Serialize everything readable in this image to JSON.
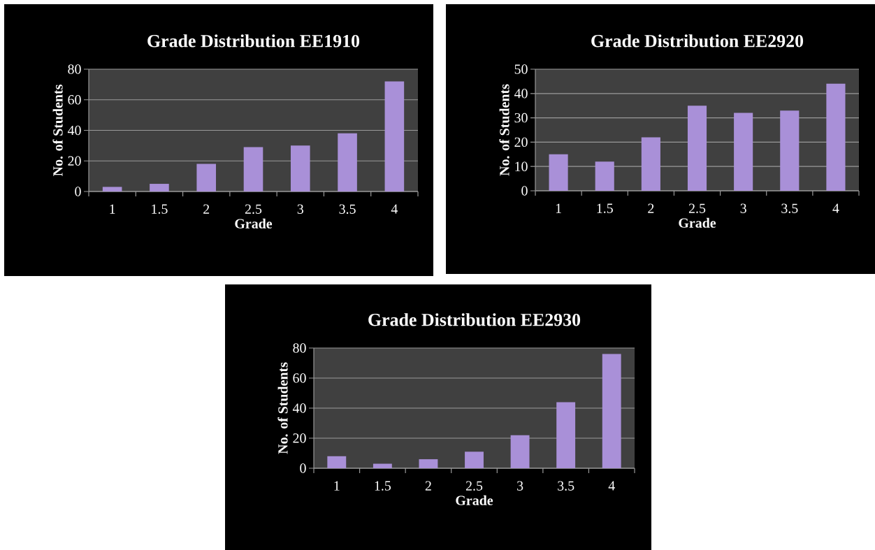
{
  "chart_data": [
    {
      "type": "bar",
      "title": "Grade Distribution EE1910",
      "xlabel": "Grade",
      "ylabel": "No. of Students",
      "categories": [
        "1",
        "1.5",
        "2",
        "2.5",
        "3",
        "3.5",
        "4"
      ],
      "values": [
        3,
        5,
        18,
        29,
        30,
        38,
        72
      ],
      "color": "#a990d8",
      "ylim": [
        0,
        80
      ],
      "yticks": [
        0,
        20,
        40,
        60,
        80
      ],
      "grid": "y"
    },
    {
      "type": "bar",
      "title": "Grade Distribution EE2920",
      "xlabel": "Grade",
      "ylabel": "No. of Students",
      "categories": [
        "1",
        "1.5",
        "2",
        "2.5",
        "3",
        "3.5",
        "4"
      ],
      "values": [
        15,
        12,
        22,
        35,
        32,
        33,
        44
      ],
      "color": "#a990d8",
      "ylim": [
        0,
        50
      ],
      "yticks": [
        0,
        10,
        20,
        30,
        40,
        50
      ],
      "grid": "y"
    },
    {
      "type": "bar",
      "title": "Grade Distribution EE2930",
      "xlabel": "Grade",
      "ylabel": "No. of Students",
      "categories": [
        "1",
        "1.5",
        "2",
        "2.5",
        "3",
        "3.5",
        "4"
      ],
      "values": [
        8,
        3,
        6,
        11,
        22,
        44,
        76
      ],
      "color": "#a990d8",
      "ylim": [
        0,
        80
      ],
      "yticks": [
        0,
        20,
        40,
        60,
        80
      ],
      "grid": "y"
    }
  ]
}
